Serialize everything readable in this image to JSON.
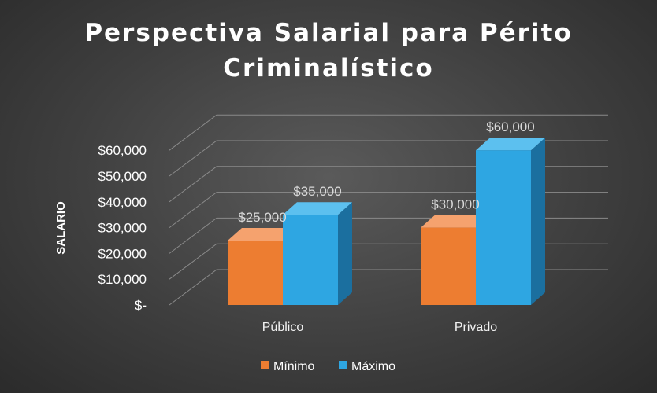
{
  "chart_data": {
    "type": "bar",
    "title_lines": [
      "Perspectiva Salarial para Périto",
      "Criminalístico"
    ],
    "ylabel": "SALARIO",
    "xlabel": "",
    "categories": [
      "Público",
      "Privado"
    ],
    "series": [
      {
        "name": "Mínimo",
        "values": [
          25000,
          30000
        ],
        "labels": [
          "$25,000",
          "$30,000"
        ]
      },
      {
        "name": "Máximo",
        "values": [
          35000,
          60000
        ],
        "labels": [
          "$35,000",
          "$60,000"
        ]
      }
    ],
    "ylim": [
      0,
      60000
    ],
    "yticks": [
      0,
      10000,
      20000,
      30000,
      40000,
      50000,
      60000
    ],
    "ytick_labels": [
      "$-",
      "$10,000",
      "$20,000",
      "$30,000",
      "$40,000",
      "$50,000",
      "$60,000"
    ],
    "grid": true,
    "legend_position": "bottom",
    "colors": {
      "Mínimo": {
        "front": "#ed7d31",
        "side": "#b25515",
        "top": "#f5a26e"
      },
      "Máximo": {
        "front": "#2ea6e2",
        "side": "#1b6f9f",
        "top": "#5cc0ef"
      }
    }
  }
}
